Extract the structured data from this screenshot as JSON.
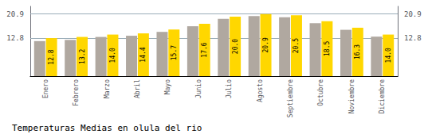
{
  "chart_data": {
    "type": "bar",
    "title": "Temperaturas Medias en olula del rio",
    "categories": [
      "Enero",
      "Febrero",
      "Marzo",
      "Abril",
      "Mayo",
      "Junio",
      "Julio",
      "Agosto",
      "Septiembre",
      "Octubre",
      "Noviembre",
      "Diciembre"
    ],
    "series": [
      {
        "color": "#B0A8A0",
        "values": [
          11.8,
          12.2,
          13.2,
          13.6,
          14.9,
          16.8,
          19.3,
          20.2,
          19.8,
          17.8,
          15.6,
          13.3
        ]
      },
      {
        "color": "#FFD700",
        "values": [
          12.8,
          13.2,
          14.0,
          14.4,
          15.7,
          17.6,
          20.0,
          20.9,
          20.5,
          18.5,
          16.3,
          14.0
        ],
        "data_labels": true,
        "value_labels": [
          "12.8",
          "13.2",
          "14.0",
          "14.4",
          "15.7",
          "17.6",
          "20.0",
          "20.9",
          "20.5",
          "18.5",
          "16.3",
          "14.0"
        ]
      }
    ],
    "ylim": [
      0.0,
      23.5
    ],
    "yticks": [
      12.8,
      20.9
    ],
    "y2lim": [
      0.0,
      23.5
    ],
    "y2ticks": [
      12.8,
      20.9
    ],
    "grid": true
  }
}
